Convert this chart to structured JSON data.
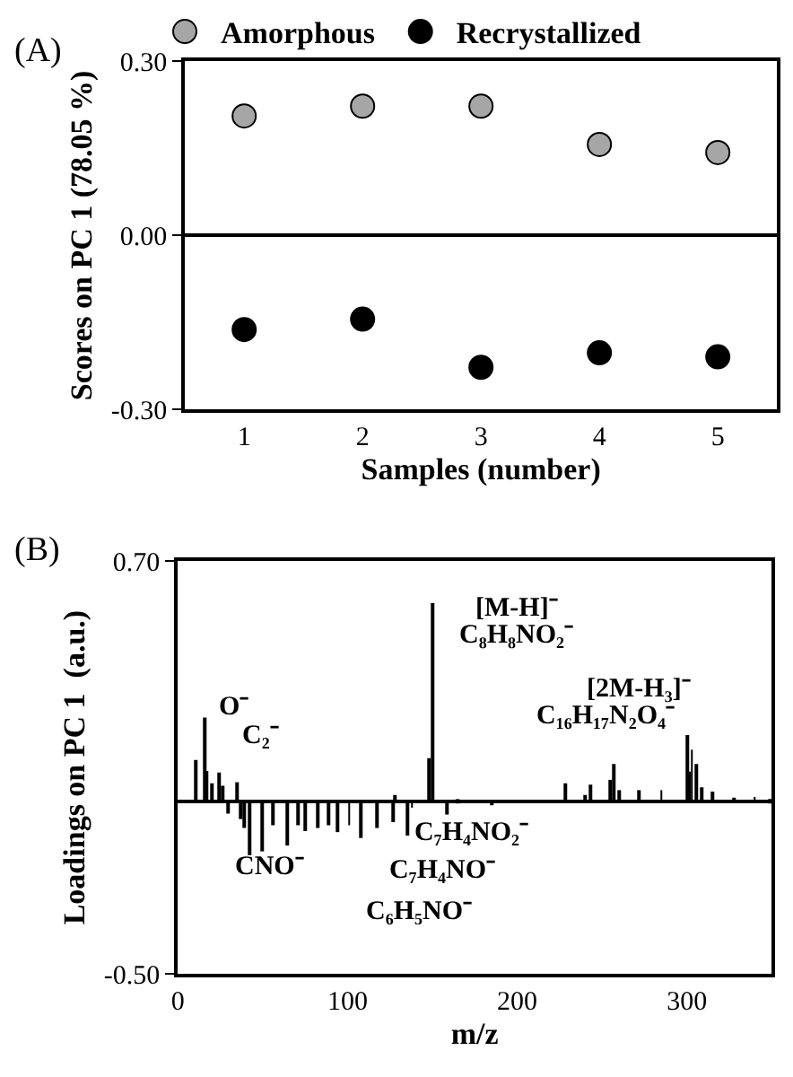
{
  "chart_data": [
    {
      "type": "scatter",
      "title": "(A)",
      "xlabel": "Samples (number)",
      "ylabel": "Scores on PC 1 (78.05 %)",
      "categories": [
        "1",
        "2",
        "3",
        "4",
        "5"
      ],
      "series": [
        {
          "name": "Amorphous",
          "color": "#a6a6a6",
          "values": [
            0.206,
            0.223,
            0.223,
            0.157,
            0.143
          ]
        },
        {
          "name": "Recrystallized",
          "color": "#000000",
          "values": [
            -0.162,
            -0.144,
            -0.227,
            -0.202,
            -0.209
          ]
        }
      ],
      "ylim": [
        -0.3,
        0.3
      ],
      "yticks": [
        {
          "value": -0.3,
          "label": "-0.30"
        },
        {
          "value": 0,
          "label": "0.00"
        },
        {
          "value": 0.3,
          "label": "0.30"
        }
      ],
      "legend": "top",
      "marker": "circle"
    },
    {
      "type": "bar",
      "title": "(B)",
      "xlabel": "m/z",
      "ylabel": "Loadings on PC 1  (a.u.)",
      "color": "#000000",
      "x": [
        11,
        16,
        17,
        20,
        24,
        26,
        30,
        35,
        37,
        39,
        42,
        50,
        56,
        65,
        71,
        75,
        82,
        89,
        94,
        101,
        108,
        117,
        127,
        128,
        135,
        138,
        148,
        150,
        159,
        165,
        175,
        185,
        195,
        210,
        228,
        240,
        243,
        255,
        257,
        260,
        272,
        285,
        300,
        301,
        303,
        306,
        309,
        315,
        328,
        340,
        349
      ],
      "values": [
        0.122,
        0.245,
        0.09,
        0.054,
        0.085,
        0.047,
        -0.034,
        0.057,
        -0.05,
        -0.076,
        -0.155,
        -0.144,
        -0.068,
        -0.127,
        -0.068,
        -0.085,
        -0.076,
        -0.068,
        -0.088,
        -0.068,
        -0.105,
        -0.076,
        -0.059,
        0.02,
        -0.098,
        -0.017,
        0.127,
        0.578,
        -0.037,
        0.008,
        null,
        -0.005,
        null,
        null,
        0.054,
        0.02,
        0.05,
        0.064,
        0.11,
        0.034,
        0.034,
        0.034,
        0.194,
        0.088,
        0.152,
        0.11,
        0.042,
        0.03,
        0.012,
        0.014,
        0.008
      ],
      "xlim": [
        0,
        350
      ],
      "xticks": [
        0,
        100,
        200,
        300
      ],
      "ylim": [
        -0.5,
        0.7
      ],
      "yticks": [
        {
          "value": -0.5,
          "label": "-0.50"
        },
        {
          "value": 0.7,
          "label": "0.70"
        }
      ],
      "annotations": [
        "O⁻",
        "C₂⁻",
        "[M-H]⁻",
        "C₈H₈NO₂⁻",
        "[2M-H₃]⁻",
        "C₁₆H₁₇N₂O₄⁻",
        "CNO⁻",
        "C₇H₄NO₂⁻",
        "C₇H₄NO⁻",
        "C₆H₅NO⁻"
      ]
    }
  ]
}
